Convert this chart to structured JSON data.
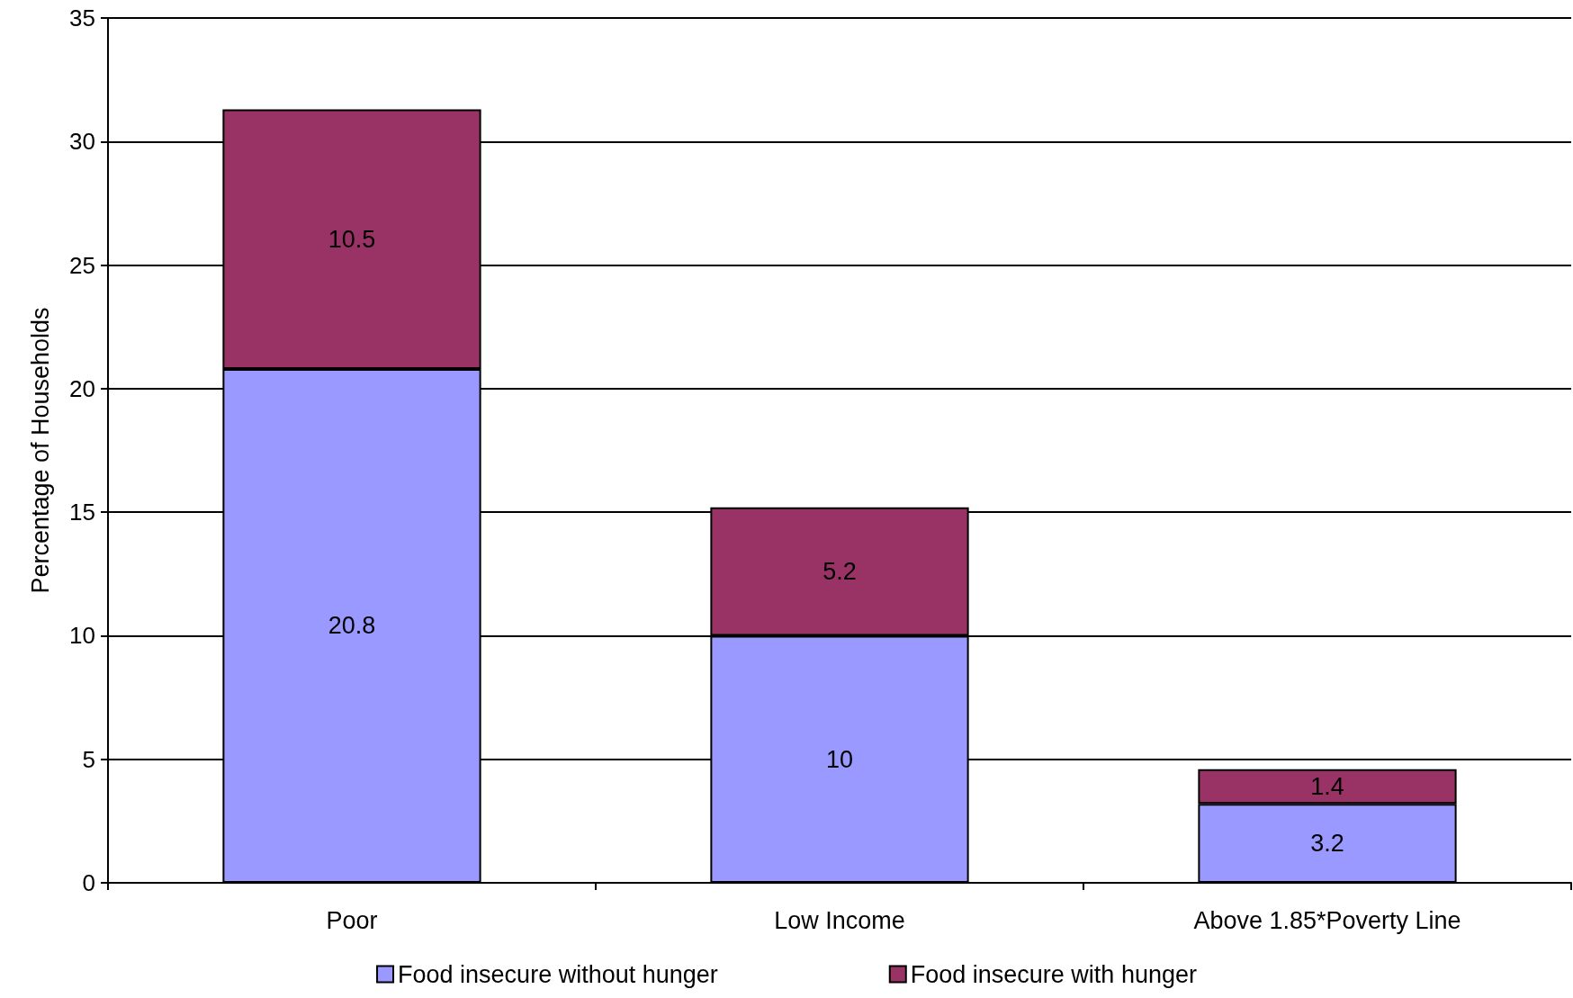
{
  "chart_data": {
    "type": "bar",
    "ylabel": "Percentage of Households",
    "categories": [
      "Poor",
      "Low Income",
      "Above 1.85*Poverty Line"
    ],
    "series": [
      {
        "name": "Food insecure without hunger",
        "color": "#9999ff",
        "values": [
          20.8,
          10,
          3.2
        ]
      },
      {
        "name": "Food insecure with hunger",
        "color": "#993366",
        "values": [
          10.5,
          5.2,
          1.4
        ]
      }
    ],
    "stacked": true,
    "data_labels": true,
    "ylim": [
      0,
      35
    ],
    "yticks": [
      0,
      5,
      10,
      15,
      20,
      25,
      30,
      35
    ],
    "grid": "y",
    "legend": "bottom"
  }
}
